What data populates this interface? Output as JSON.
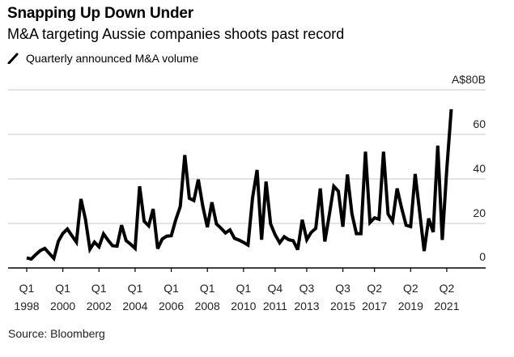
{
  "header": {
    "title": "Snapping Up Down Under",
    "subtitle": "M&A targeting Aussie companies shoots past record",
    "legend_label": "Quarterly announced M&A volume"
  },
  "footer": {
    "source": "Source: Bloomberg"
  },
  "colors": {
    "line": "#000000",
    "grid": "#dcdcdc",
    "axis": "#000000"
  },
  "chart_data": {
    "type": "line",
    "title": "Snapping Up Down Under",
    "subtitle": "M&A targeting Aussie companies shoots past record",
    "xlabel": "",
    "ylabel": "",
    "y_unit_label": "A$80B",
    "ylim": [
      0,
      80
    ],
    "y_ticks": [
      0,
      20,
      40,
      60,
      80
    ],
    "y_tick_labels": [
      "0",
      "20",
      "40",
      "60",
      "A$80B"
    ],
    "y_axis_side": "right",
    "grid": true,
    "legend": {
      "position": "top-left",
      "entries": [
        "Quarterly announced M&A volume"
      ]
    },
    "x_start": "Q1 1998",
    "x_end": "Q3 2021",
    "x_ticks": [
      {
        "index": 0,
        "q": "Q1",
        "year": "1998"
      },
      {
        "index": 8,
        "q": "Q1",
        "year": "2000"
      },
      {
        "index": 16,
        "q": "Q1",
        "year": "2002"
      },
      {
        "index": 24,
        "q": "Q1",
        "year": "2004"
      },
      {
        "index": 32,
        "q": "Q1",
        "year": "2006"
      },
      {
        "index": 40,
        "q": "Q1",
        "year": "2008"
      },
      {
        "index": 48,
        "q": "Q1",
        "year": "2010"
      },
      {
        "index": 55,
        "q": "Q4",
        "year": "2011"
      },
      {
        "index": 62,
        "q": "Q3",
        "year": "2013"
      },
      {
        "index": 70,
        "q": "Q3",
        "year": "2015"
      },
      {
        "index": 77,
        "q": "Q2",
        "year": "2017"
      },
      {
        "index": 85,
        "q": "Q2",
        "year": "2019"
      },
      {
        "index": 93,
        "q": "Q2",
        "year": "2021"
      }
    ],
    "series": [
      {
        "name": "Quarterly announced M&A volume",
        "unit": "A$B",
        "values": [
          4.5,
          4,
          6,
          7.8,
          8.8,
          6.5,
          4.3,
          12,
          15.5,
          17.5,
          14.5,
          11.6,
          31,
          22,
          8.4,
          11.6,
          9.5,
          15.3,
          12.5,
          10,
          9.8,
          19.2,
          12.3,
          10.7,
          8.8,
          36.7,
          21,
          18.9,
          26.5,
          8.7,
          13,
          14.3,
          14.5,
          21.6,
          27.6,
          50.7,
          31.3,
          30.3,
          39.7,
          27.6,
          18.3,
          29.5,
          19.8,
          17.9,
          15.7,
          17.1,
          13.3,
          12.5,
          11.5,
          10.3,
          31.5,
          44,
          12.7,
          38.8,
          19.8,
          14.9,
          11.3,
          14,
          12.7,
          12.2,
          8.2,
          21.6,
          12.7,
          16,
          17.8,
          35.7,
          11.9,
          24,
          36.7,
          34.5,
          18.5,
          42,
          24.3,
          15.4,
          15.4,
          52.2,
          20.4,
          22.5,
          21.9,
          52.2,
          24.2,
          21,
          35.7,
          27,
          19.2,
          18.6,
          42.2,
          25,
          7.6,
          22.2,
          16.1,
          55,
          12.6,
          44,
          71.3
        ]
      }
    ]
  }
}
